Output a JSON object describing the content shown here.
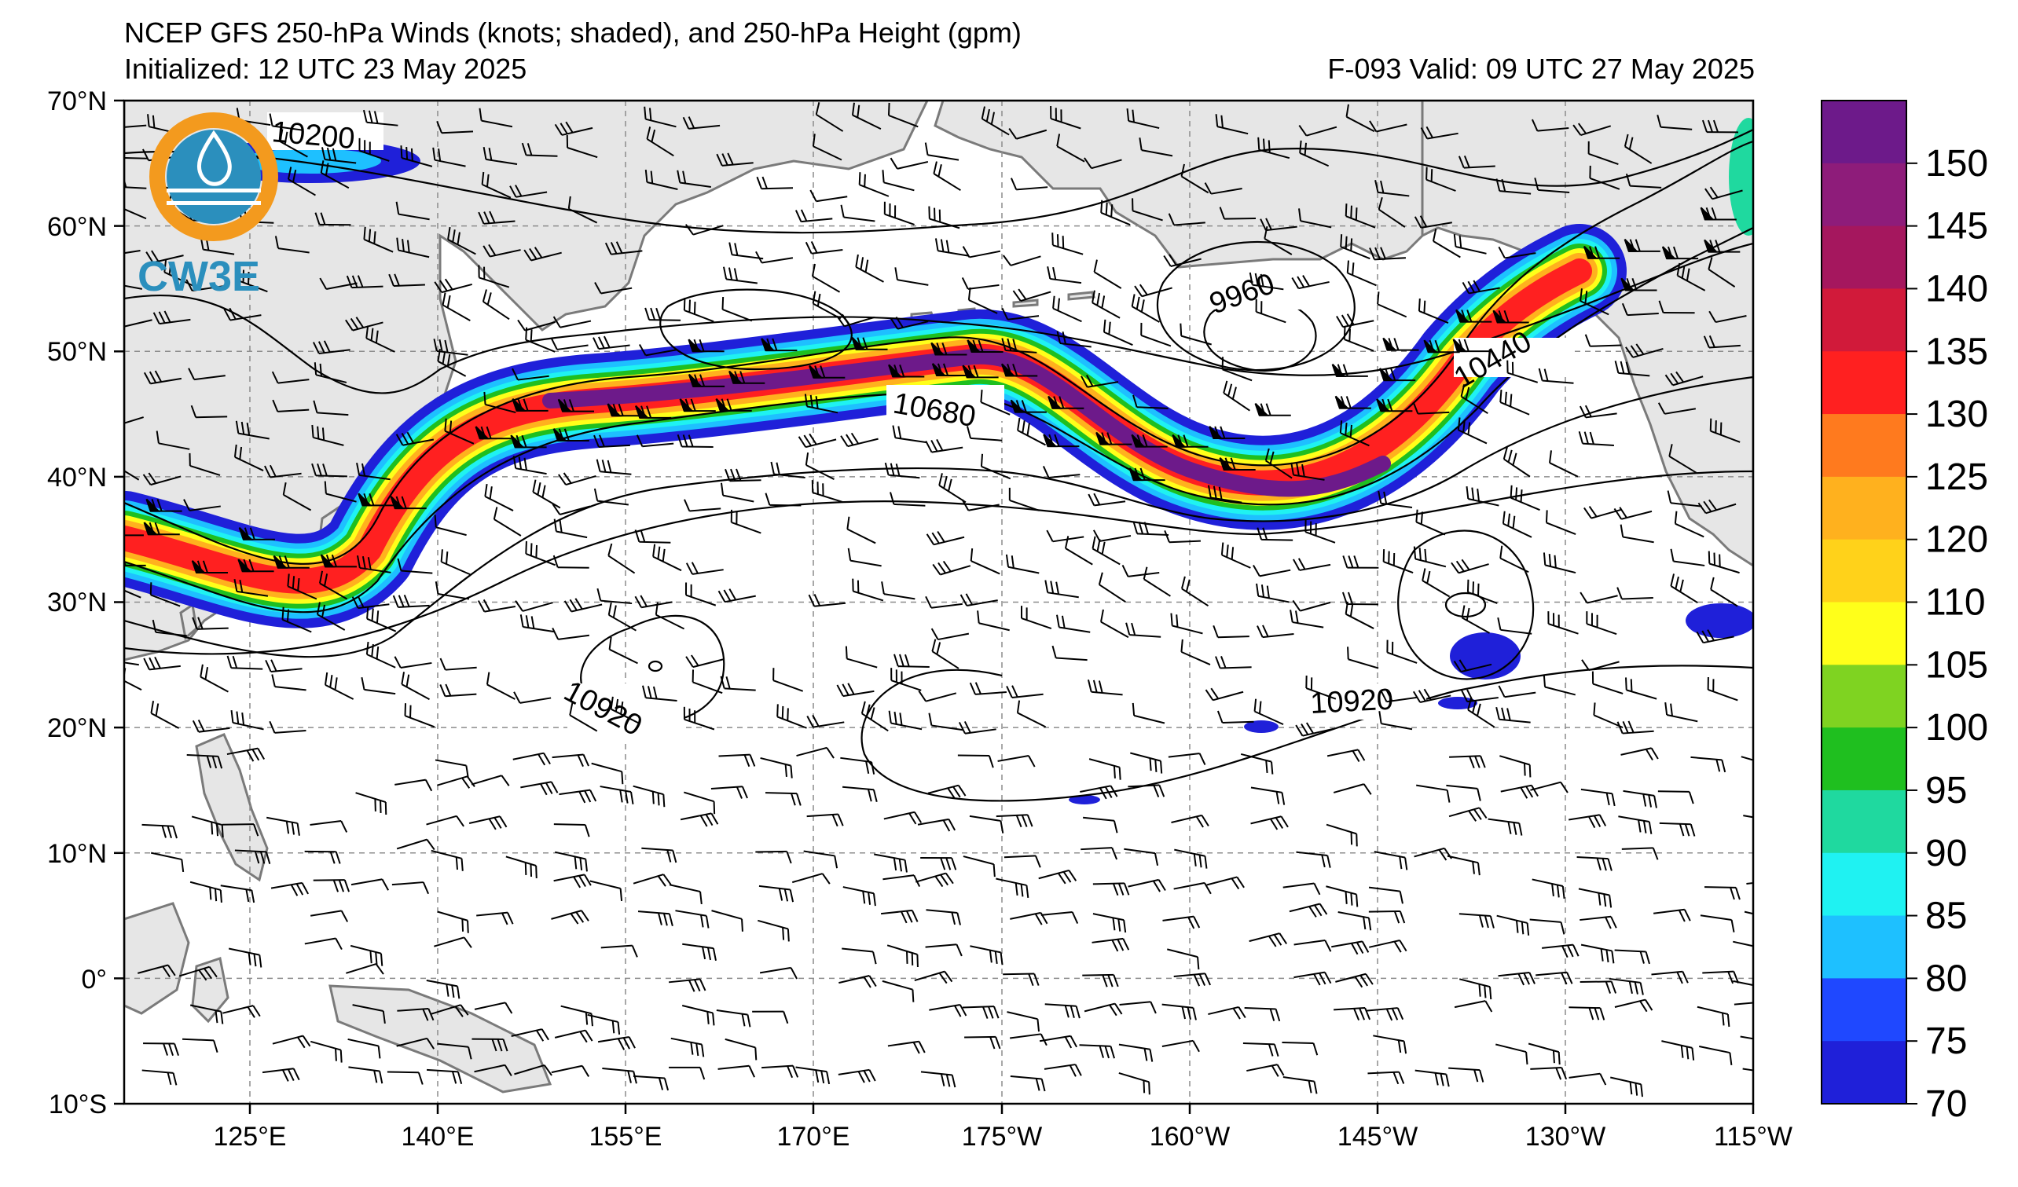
{
  "header": {
    "title": "NCEP GFS 250-hPa Winds (knots; shaded), and 250-hPa Height (gpm)",
    "initialized": "Initialized: 12 UTC 23 May 2025",
    "valid": "F-093  Valid: 09 UTC 27 May 2025"
  },
  "logo": {
    "text": "CW3E",
    "ring_color": "#f39a1e",
    "water_color": "#2b8fbd"
  },
  "map": {
    "lat_labels": [
      "70°N",
      "60°N",
      "50°N",
      "40°N",
      "30°N",
      "20°N",
      "10°N",
      "0°",
      "10°S"
    ],
    "lon_labels": [
      "125°E",
      "140°E",
      "155°E",
      "170°E",
      "175°W",
      "160°W",
      "145°W",
      "130°W",
      "115°W"
    ],
    "contour_labels": [
      "10200",
      "9960",
      "10680",
      "10440",
      "10920",
      "10920"
    ],
    "land_color": "#e6e6e6",
    "coast_color": "#7a7a7a"
  },
  "colorbar": {
    "ticks": [
      "150",
      "145",
      "140",
      "135",
      "130",
      "125",
      "120",
      "110",
      "105",
      "100",
      "95",
      "90",
      "85",
      "80",
      "75",
      "70"
    ],
    "colors": [
      "#6d1a8a",
      "#8e1c7a",
      "#a5175e",
      "#d11a3a",
      "#ff2020",
      "#ff7a1e",
      "#ffb11e",
      "#ffd21a",
      "#ffff1a",
      "#7fd321",
      "#1fbf1f",
      "#1fd99f",
      "#1ff2f2",
      "#1ec0ff",
      "#1f48ff",
      "#1f20d9"
    ]
  }
}
